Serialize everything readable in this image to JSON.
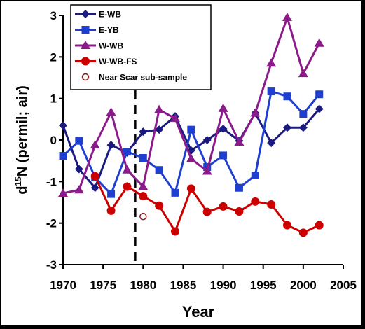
{
  "chart_data": {
    "type": "line",
    "xlabel": "Year",
    "ylabel_main": "d",
    "ylabel_sup": "15",
    "ylabel_rest": "N (permil; air)",
    "xlim": [
      1970,
      2005
    ],
    "ylim": [
      -3,
      3
    ],
    "xticks": [
      1970,
      1975,
      1980,
      1985,
      1990,
      1995,
      2000,
      2005
    ],
    "yticks": [
      3,
      2,
      1,
      0,
      -1,
      -2,
      -3
    ],
    "vline_x": 1979,
    "grid": false,
    "legend_position": "top-left",
    "series": [
      {
        "name": "E-WB",
        "color": "#1a1a80",
        "marker": "diamond",
        "x": [
          1970,
          1972,
          1974,
          1976,
          1978,
          1980,
          1982,
          1984,
          1986,
          1988,
          1990,
          1992,
          1994,
          1996,
          1998,
          2000,
          2002
        ],
        "y": [
          0.35,
          -0.7,
          -1.15,
          -0.12,
          -0.3,
          0.2,
          0.25,
          0.57,
          -0.25,
          0.0,
          0.27,
          -0.02,
          0.65,
          -0.07,
          0.3,
          0.3,
          0.75
        ]
      },
      {
        "name": "E-YB",
        "color": "#1f3fd0",
        "marker": "square",
        "x": [
          1970,
          1972,
          1974,
          1976,
          1978,
          1980,
          1982,
          1984,
          1986,
          1988,
          1990,
          1992,
          1994,
          1996,
          1998,
          2000,
          2002
        ],
        "y": [
          -0.38,
          -0.02,
          -0.9,
          -1.3,
          -0.28,
          -0.43,
          -0.72,
          -1.27,
          0.25,
          -0.65,
          -0.37,
          -1.15,
          -0.85,
          1.17,
          1.05,
          0.63,
          1.1
        ]
      },
      {
        "name": "W-WB",
        "color": "#8b1a8b",
        "marker": "triangle",
        "x": [
          1970,
          1972,
          1974,
          1976,
          1978,
          1980,
          1982,
          1984,
          1986,
          1988,
          1990,
          1992,
          1994,
          1996,
          1998,
          2000,
          2002
        ],
        "y": [
          -1.28,
          -1.2,
          -0.12,
          0.67,
          -0.72,
          -1.12,
          0.73,
          0.52,
          -0.45,
          -0.75,
          0.76,
          -0.05,
          0.65,
          1.85,
          2.95,
          1.6,
          2.33
        ]
      },
      {
        "name": "W-WB-FS",
        "color": "#cc0000",
        "marker": "circle",
        "x": [
          1974,
          1976,
          1978,
          1980,
          1982,
          1984,
          1986,
          1988,
          1990,
          1992,
          1994,
          1996,
          1998,
          2000,
          2002
        ],
        "y": [
          -0.87,
          -1.7,
          -1.12,
          -1.35,
          -1.58,
          -2.2,
          -1.17,
          -1.73,
          -1.6,
          -1.72,
          -1.48,
          -1.55,
          -2.05,
          -2.23,
          -2.05
        ]
      }
    ],
    "extra_points": [
      {
        "name": "Near Scar sub-sample",
        "color": "#8b1a1a",
        "marker": "open-circle",
        "x": [
          1980
        ],
        "y": [
          -1.84
        ]
      }
    ]
  }
}
